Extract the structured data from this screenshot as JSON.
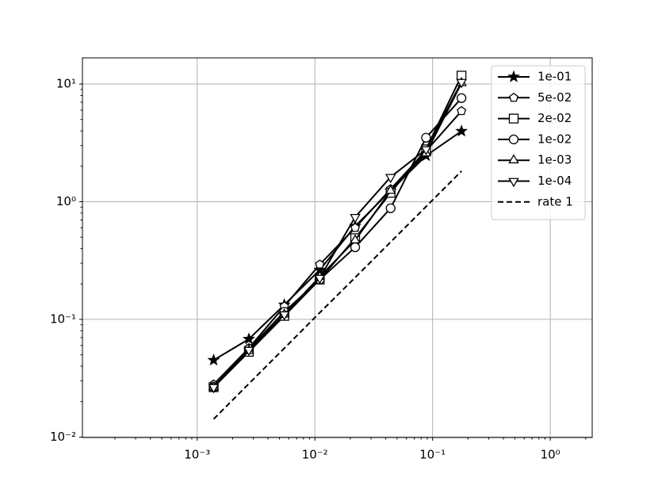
{
  "chart_data": {
    "type": "line",
    "log_x": true,
    "log_y": true,
    "grid": true,
    "legend": "upper right",
    "x": [
      0.00138,
      0.00275,
      0.0055,
      0.011,
      0.022,
      0.044,
      0.088,
      0.176
    ],
    "xlim": [
      0.000106,
      2.27
    ],
    "ylim": [
      0.0099,
      16.7
    ],
    "xticks": [
      {
        "value": 0.001,
        "label": "10⁻³"
      },
      {
        "value": 0.01,
        "label": "10⁻²"
      },
      {
        "value": 0.1,
        "label": "10⁻¹"
      },
      {
        "value": 1,
        "label": "10⁰"
      }
    ],
    "yticks": [
      {
        "value": 0.01,
        "label": "10⁻²"
      },
      {
        "value": 0.1,
        "label": "10⁻¹"
      },
      {
        "value": 1,
        "label": "10⁰"
      },
      {
        "value": 10,
        "label": "10¹"
      }
    ],
    "series": [
      {
        "name": "1e-01",
        "color": "#000000",
        "marker": "star",
        "line": "solid",
        "values": [
          0.045,
          0.068,
          0.133,
          0.263,
          0.62,
          1.24,
          2.46,
          3.98
        ]
      },
      {
        "name": "5e-02",
        "color": "#000000",
        "marker": "pentagon",
        "line": "solid",
        "values": [
          0.028,
          0.057,
          0.129,
          0.293,
          0.6,
          1.28,
          2.7,
          5.9
        ]
      },
      {
        "name": "2e-02",
        "color": "#000000",
        "marker": "square",
        "line": "solid",
        "values": [
          0.0265,
          0.053,
          0.107,
          0.218,
          0.49,
          1.19,
          2.79,
          11.8
        ]
      },
      {
        "name": "1e-02",
        "color": "#000000",
        "marker": "circle",
        "line": "solid",
        "values": [
          0.0265,
          0.056,
          0.116,
          0.218,
          0.41,
          0.88,
          3.5,
          7.6
        ]
      },
      {
        "name": "1e-03",
        "color": "#000000",
        "marker": "triangle-up",
        "line": "solid",
        "values": [
          0.0265,
          0.054,
          0.11,
          0.23,
          0.47,
          1.24,
          2.58,
          10.2
        ]
      },
      {
        "name": "1e-04",
        "color": "#000000",
        "marker": "triangle-down",
        "line": "solid",
        "values": [
          0.0265,
          0.055,
          0.11,
          0.225,
          0.74,
          1.62,
          2.79,
          10.4
        ]
      },
      {
        "name": "rate 1",
        "color": "#000000",
        "marker": "none",
        "line": "dashed",
        "values": [
          0.0142,
          0.0284,
          0.0568,
          0.114,
          0.227,
          0.454,
          0.909,
          1.82
        ]
      }
    ]
  }
}
